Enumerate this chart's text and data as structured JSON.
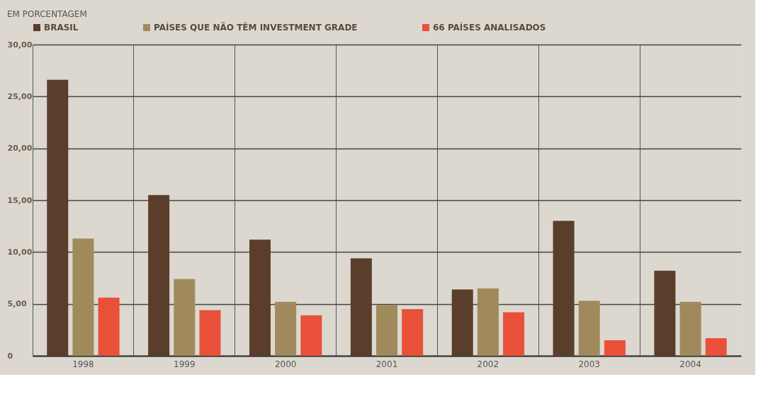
{
  "chart_data": {
    "type": "bar",
    "title": "EM PORCENTAGEM",
    "categories": [
      "1998",
      "1999",
      "2000",
      "2001",
      "2002",
      "2003",
      "2004"
    ],
    "series": [
      {
        "name": "BRASIL",
        "color": "#5a3e2b",
        "values": [
          26.6,
          15.5,
          11.2,
          9.4,
          6.4,
          13.0,
          8.2
        ]
      },
      {
        "name": "PAÍSES QUE NÃO TÊM INVESTMENT GRADE",
        "color": "#a08a5c",
        "values": [
          11.3,
          7.4,
          5.2,
          4.9,
          6.5,
          5.3,
          5.2
        ]
      },
      {
        "name": "66 PAÍSES ANALISADOS",
        "color": "#e8503a",
        "values": [
          5.6,
          4.4,
          3.9,
          4.5,
          4.2,
          1.5,
          1.7
        ]
      }
    ],
    "ylim": [
      0,
      30
    ],
    "yticks": [
      0,
      {
        "value": 5,
        "label": "5,00"
      },
      {
        "value": 10,
        "label": "10,00"
      },
      {
        "value": 15,
        "label": "15,00"
      },
      {
        "value": 20,
        "label": "20,00"
      },
      {
        "value": 25,
        "label": "25,00"
      },
      {
        "value": 30,
        "label": "30,00"
      }
    ],
    "grid": true,
    "legend": "top"
  }
}
